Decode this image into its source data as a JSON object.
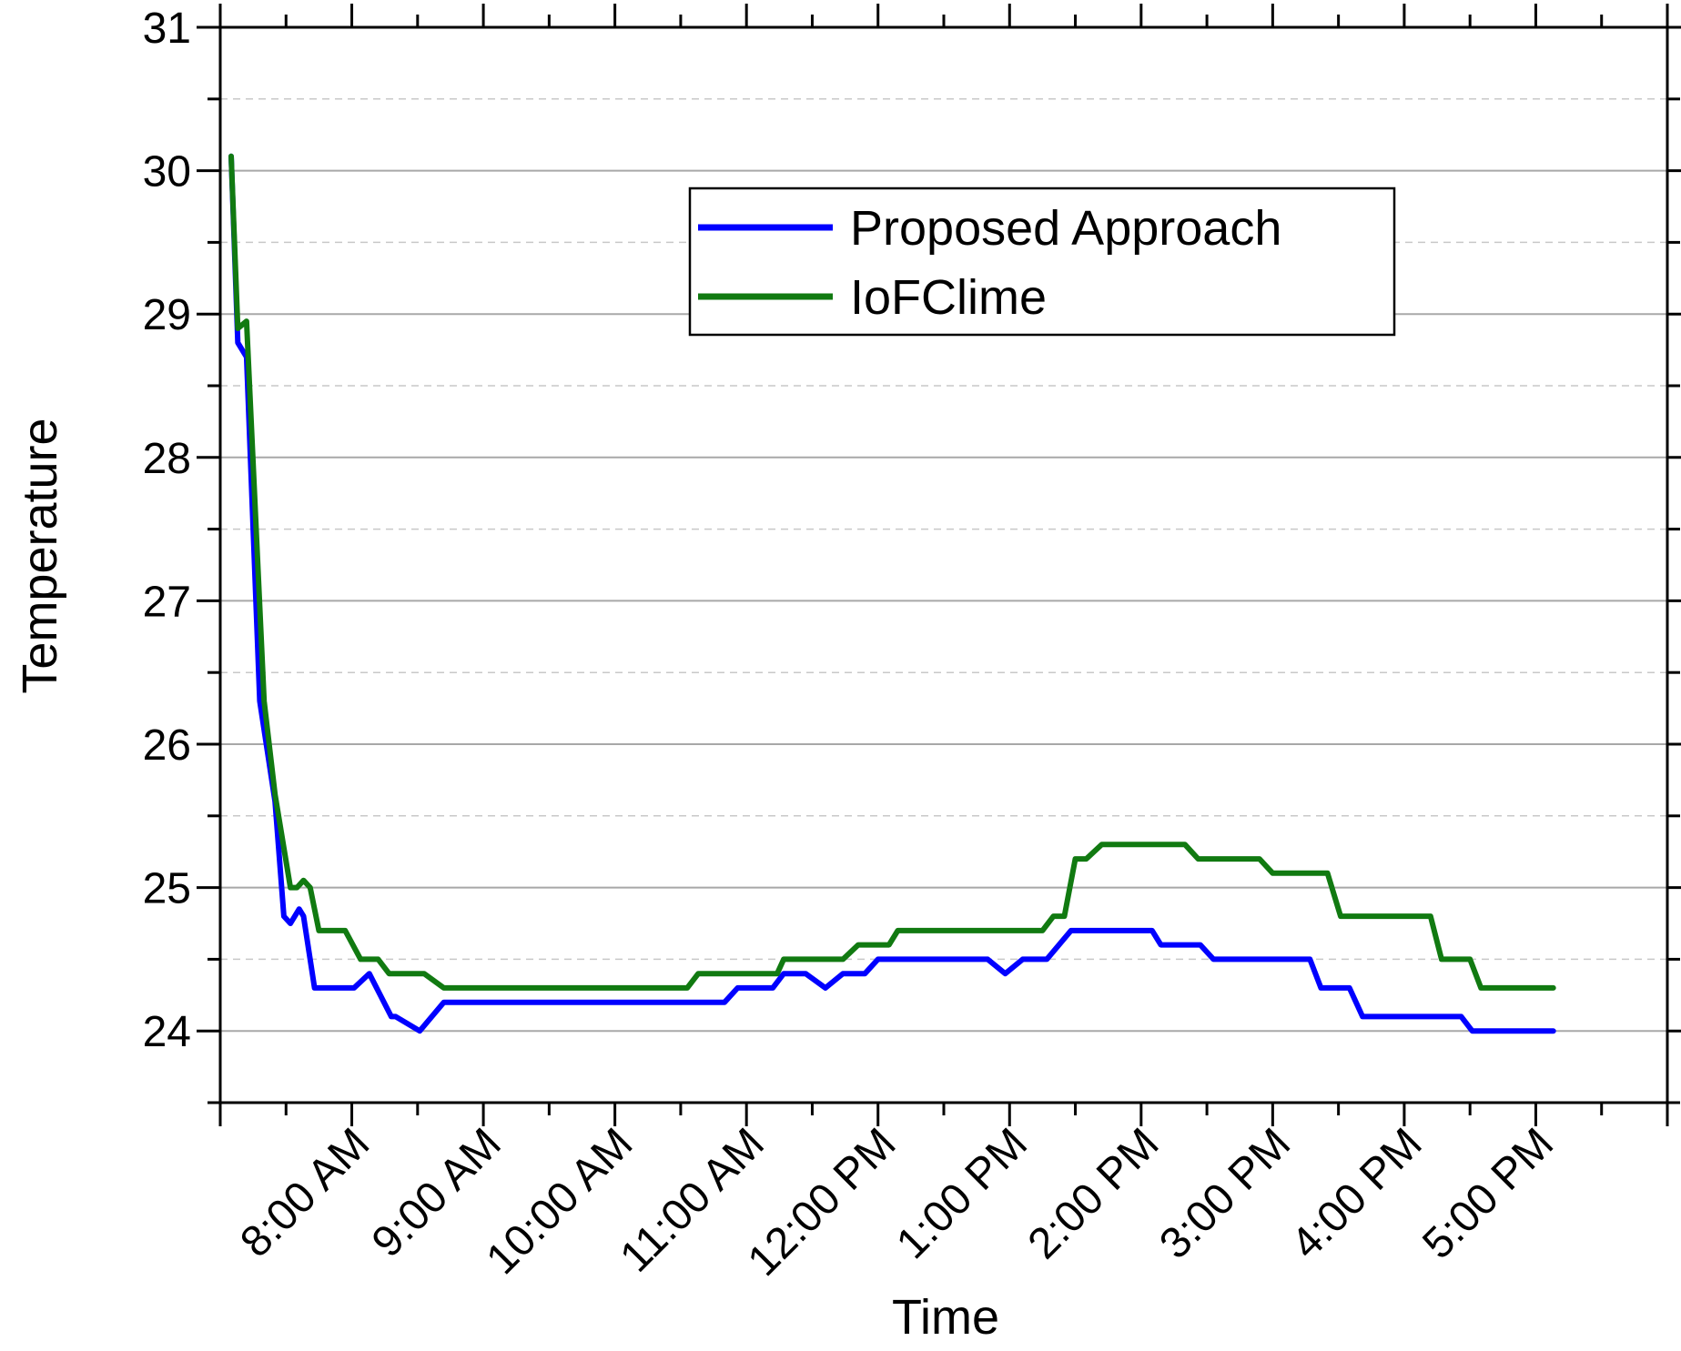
{
  "chart_data": {
    "type": "line",
    "xlabel": "Time",
    "ylabel": "Temperature",
    "ylim": [
      23.5,
      31
    ],
    "y_ticks": [
      24,
      25,
      26,
      27,
      28,
      29,
      30,
      31
    ],
    "xlim": [
      "07:00",
      "18:00"
    ],
    "x_tick_labels": [
      "8:00 AM",
      "9:00 AM",
      "10:00 AM",
      "11:00 AM",
      "12:00 PM",
      "1:00 PM",
      "2:00 PM",
      "3:00 PM",
      "4:00 PM",
      "5:00 PM"
    ],
    "x_tick_times": [
      "08:00",
      "09:00",
      "10:00",
      "11:00",
      "12:00",
      "13:00",
      "14:00",
      "15:00",
      "16:00",
      "17:00"
    ],
    "grid": true,
    "legend_position": "top-right",
    "series": [
      {
        "name": "Proposed Approach",
        "color": "#0000ff",
        "points": [
          [
            "07:05",
            30.1
          ],
          [
            "07:08",
            28.8
          ],
          [
            "07:12",
            28.7
          ],
          [
            "07:18",
            26.3
          ],
          [
            "07:25",
            25.6
          ],
          [
            "07:29",
            24.8
          ],
          [
            "07:32",
            24.75
          ],
          [
            "07:36",
            24.85
          ],
          [
            "07:38",
            24.8
          ],
          [
            "07:43",
            24.3
          ],
          [
            "07:47",
            24.3
          ],
          [
            "07:50",
            24.3
          ],
          [
            "07:55",
            24.3
          ],
          [
            "07:58",
            24.3
          ],
          [
            "08:01",
            24.3
          ],
          [
            "08:08",
            24.4
          ],
          [
            "08:18",
            24.1
          ],
          [
            "08:20",
            24.1
          ],
          [
            "08:31",
            24.0
          ],
          [
            "08:42",
            24.2
          ],
          [
            "08:48",
            24.2
          ],
          [
            "10:48",
            24.2
          ],
          [
            "10:50",
            24.2
          ],
          [
            "10:56",
            24.3
          ],
          [
            "11:12",
            24.3
          ],
          [
            "11:17",
            24.4
          ],
          [
            "11:27",
            24.4
          ],
          [
            "11:36",
            24.3
          ],
          [
            "11:44",
            24.4
          ],
          [
            "11:54",
            24.4
          ],
          [
            "12:00",
            24.5
          ],
          [
            "12:50",
            24.5
          ],
          [
            "12:58",
            24.4
          ],
          [
            "13:06",
            24.5
          ],
          [
            "13:17",
            24.5
          ],
          [
            "13:28",
            24.7
          ],
          [
            "14:05",
            24.7
          ],
          [
            "14:09",
            24.6
          ],
          [
            "14:27",
            24.6
          ],
          [
            "14:33",
            24.5
          ],
          [
            "15:05",
            24.5
          ],
          [
            "15:09",
            24.5
          ],
          [
            "15:17",
            24.5
          ],
          [
            "15:22",
            24.3
          ],
          [
            "15:31",
            24.3
          ],
          [
            "15:35",
            24.3
          ],
          [
            "15:41",
            24.1
          ],
          [
            "16:03",
            24.1
          ],
          [
            "16:06",
            24.1
          ],
          [
            "16:13",
            24.1
          ],
          [
            "16:19",
            24.1
          ],
          [
            "16:21",
            24.1
          ],
          [
            "16:24",
            24.1
          ],
          [
            "16:26",
            24.1
          ],
          [
            "16:31",
            24.0
          ],
          [
            "17:08",
            24.0
          ]
        ]
      },
      {
        "name": "IoFClime",
        "color": "#117a11",
        "points": [
          [
            "07:05",
            30.1
          ],
          [
            "07:08",
            28.9
          ],
          [
            "07:12",
            28.95
          ],
          [
            "07:20",
            26.3
          ],
          [
            "07:25",
            25.65
          ],
          [
            "07:32",
            25.0
          ],
          [
            "07:35",
            25.0
          ],
          [
            "07:38",
            25.05
          ],
          [
            "07:41",
            25.0
          ],
          [
            "07:45",
            24.7
          ],
          [
            "07:50",
            24.7
          ],
          [
            "07:53",
            24.7
          ],
          [
            "07:57",
            24.7
          ],
          [
            "08:04",
            24.5
          ],
          [
            "08:07",
            24.5
          ],
          [
            "08:12",
            24.5
          ],
          [
            "08:17",
            24.4
          ],
          [
            "08:20",
            24.4
          ],
          [
            "08:26",
            24.4
          ],
          [
            "08:33",
            24.4
          ],
          [
            "08:42",
            24.3
          ],
          [
            "08:48",
            24.3
          ],
          [
            "10:33",
            24.3
          ],
          [
            "10:38",
            24.4
          ],
          [
            "10:49",
            24.4
          ],
          [
            "11:00",
            24.4
          ],
          [
            "11:14",
            24.4
          ],
          [
            "11:17",
            24.5
          ],
          [
            "11:20",
            24.5
          ],
          [
            "11:44",
            24.5
          ],
          [
            "11:51",
            24.6
          ],
          [
            "12:05",
            24.6
          ],
          [
            "12:09",
            24.7
          ],
          [
            "13:15",
            24.7
          ],
          [
            "13:20",
            24.8
          ],
          [
            "13:25",
            24.8
          ],
          [
            "13:30",
            25.2
          ],
          [
            "13:35",
            25.2
          ],
          [
            "13:42",
            25.3
          ],
          [
            "14:20",
            25.3
          ],
          [
            "14:26",
            25.2
          ],
          [
            "14:54",
            25.2
          ],
          [
            "15:00",
            25.1
          ],
          [
            "15:25",
            25.1
          ],
          [
            "15:31",
            24.8
          ],
          [
            "15:37",
            24.8
          ],
          [
            "16:09",
            24.8
          ],
          [
            "16:12",
            24.8
          ],
          [
            "16:17",
            24.5
          ],
          [
            "16:30",
            24.5
          ],
          [
            "16:35",
            24.3
          ],
          [
            "16:40",
            24.3
          ],
          [
            "17:08",
            24.3
          ]
        ]
      }
    ]
  }
}
